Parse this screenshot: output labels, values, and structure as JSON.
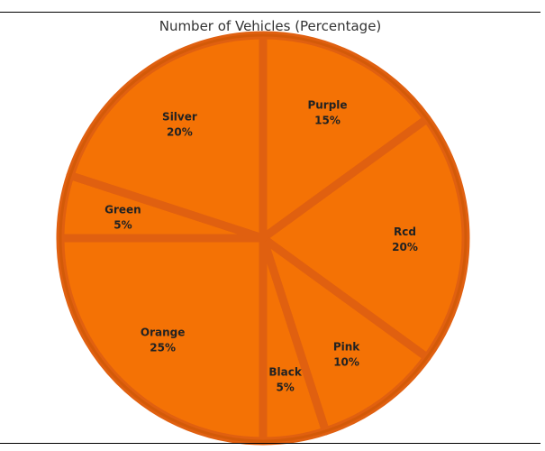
{
  "chart_data": {
    "type": "pie",
    "title": "Number of Vehicles (Percentage)",
    "unit": "%",
    "slices": [
      {
        "label": "Purple",
        "value": 15
      },
      {
        "label": "Rcd",
        "value": 20
      },
      {
        "label": "Pink",
        "value": 10
      },
      {
        "label": "Black",
        "value": 5
      },
      {
        "label": "Orange",
        "value": 25
      },
      {
        "label": "Green",
        "value": 5
      },
      {
        "label": "Silver",
        "value": 20
      }
    ],
    "slice_color": "#F47205",
    "separator_color": "#E06010",
    "outline_color": "#D35A08"
  }
}
